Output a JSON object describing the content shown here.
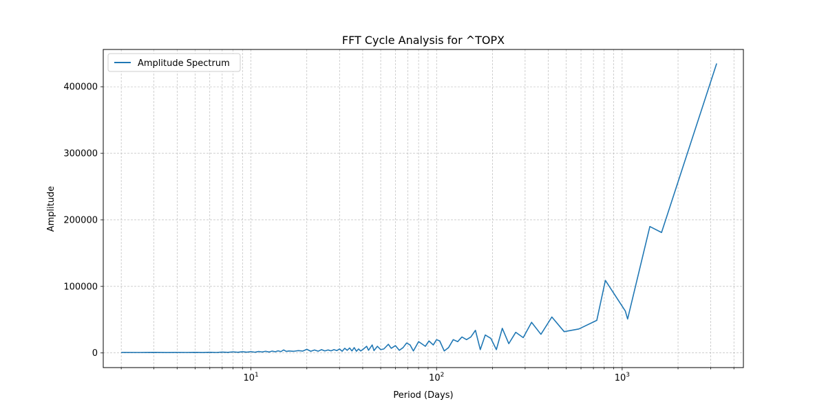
{
  "chart_data": {
    "type": "line",
    "title": "FFT Cycle Analysis for ^TOPX",
    "xlabel": "Period (Days)",
    "ylabel": "Amplitude",
    "x_scale": "log",
    "xlim": [
      1.6,
      4500
    ],
    "ylim": [
      -22000,
      456000
    ],
    "y_ticks": [
      0,
      100000,
      200000,
      300000,
      400000
    ],
    "y_tick_labels": [
      "0",
      "100000",
      "200000",
      "300000",
      "400000"
    ],
    "x_major_ticks": [
      10,
      100,
      1000
    ],
    "x_tick_labels": [
      "10^1",
      "10^2",
      "10^3"
    ],
    "grid": true,
    "legend_position": "top-left",
    "series": [
      {
        "name": "Amplitude Spectrum",
        "color": "#1f77b4",
        "points": [
          [
            2.0,
            800
          ],
          [
            2.5,
            700
          ],
          [
            3.0,
            900
          ],
          [
            3.5,
            600
          ],
          [
            4.0,
            800
          ],
          [
            4.5,
            700
          ],
          [
            5.0,
            900
          ],
          [
            5.5,
            600
          ],
          [
            6.0,
            1000
          ],
          [
            6.5,
            700
          ],
          [
            7.0,
            1300
          ],
          [
            7.5,
            900
          ],
          [
            8.0,
            1600
          ],
          [
            8.5,
            1000
          ],
          [
            9.0,
            1800
          ],
          [
            9.5,
            1200
          ],
          [
            10.0,
            2000
          ],
          [
            10.5,
            1100
          ],
          [
            11.0,
            2200
          ],
          [
            11.5,
            1500
          ],
          [
            12.0,
            2500
          ],
          [
            12.5,
            1400
          ],
          [
            13.0,
            2800
          ],
          [
            13.5,
            1800
          ],
          [
            14.0,
            3200
          ],
          [
            14.5,
            2000
          ],
          [
            15.0,
            4500
          ],
          [
            15.5,
            2300
          ],
          [
            16.0,
            3000
          ],
          [
            17.0,
            2500
          ],
          [
            18.0,
            3500
          ],
          [
            19.0,
            2800
          ],
          [
            20.0,
            5500
          ],
          [
            21.0,
            2500
          ],
          [
            22.0,
            4500
          ],
          [
            23.0,
            2600
          ],
          [
            24.0,
            5000
          ],
          [
            25.0,
            3000
          ],
          [
            26.0,
            4500
          ],
          [
            27.0,
            3200
          ],
          [
            28.0,
            5000
          ],
          [
            29.0,
            3500
          ],
          [
            30.0,
            6000
          ],
          [
            31.0,
            2500
          ],
          [
            32.0,
            7000
          ],
          [
            33.0,
            4000
          ],
          [
            34.0,
            7500
          ],
          [
            35.0,
            3000
          ],
          [
            36.0,
            8000
          ],
          [
            37.0,
            2500
          ],
          [
            38.0,
            6000
          ],
          [
            39.0,
            3000
          ],
          [
            40.0,
            5000
          ],
          [
            42.0,
            10000
          ],
          [
            43.0,
            4000
          ],
          [
            45.0,
            12000
          ],
          [
            46.0,
            3500
          ],
          [
            48.0,
            10000
          ],
          [
            50.0,
            5000
          ],
          [
            52.0,
            6000
          ],
          [
            55.0,
            13000
          ],
          [
            57.0,
            7000
          ],
          [
            60.0,
            11000
          ],
          [
            63.0,
            4000
          ],
          [
            66.0,
            8000
          ],
          [
            69.0,
            15000
          ],
          [
            72.0,
            12000
          ],
          [
            75.0,
            3000
          ],
          [
            80.0,
            17000
          ],
          [
            83.0,
            14000
          ],
          [
            87.0,
            10000
          ],
          [
            91.0,
            18000
          ],
          [
            96.0,
            12000
          ],
          [
            100.0,
            20000
          ],
          [
            104.0,
            18000
          ],
          [
            110.0,
            3000
          ],
          [
            116.0,
            8000
          ],
          [
            123.0,
            20000
          ],
          [
            130.0,
            17000
          ],
          [
            137.0,
            24000
          ],
          [
            145.0,
            20000
          ],
          [
            153.0,
            24000
          ],
          [
            162.0,
            34000
          ],
          [
            172.0,
            5000
          ],
          [
            183.0,
            27000
          ],
          [
            196.0,
            22000
          ],
          [
            210.0,
            5000
          ],
          [
            226.0,
            37000
          ],
          [
            245.0,
            14000
          ],
          [
            267.0,
            31000
          ],
          [
            293.0,
            23000
          ],
          [
            325.0,
            46000
          ],
          [
            365.0,
            28000
          ],
          [
            418.0,
            54000
          ],
          [
            487.0,
            32000
          ],
          [
            584.0,
            36000
          ],
          [
            730.0,
            49000
          ],
          [
            812.0,
            109000
          ],
          [
            1040.0,
            63000
          ],
          [
            1410.0,
            190000
          ],
          [
            1070.0,
            51000
          ],
          [
            1630.0,
            181000
          ],
          [
            3230.0,
            435000
          ]
        ]
      }
    ]
  }
}
